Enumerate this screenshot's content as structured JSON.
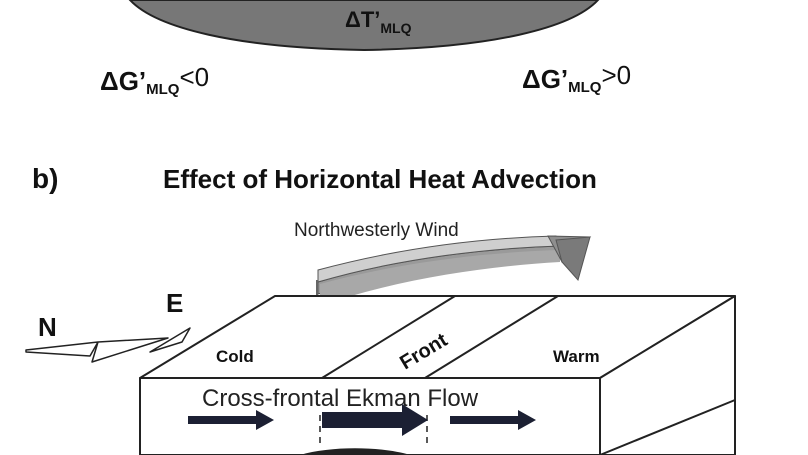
{
  "panel_a": {
    "delta_t_label": {
      "prefix": "ΔT’",
      "sub": "MLQ"
    },
    "left_label": {
      "prefix": "ΔG’",
      "sub": "MLQ",
      "sub2": "",
      "relation": "<0"
    },
    "right_label": {
      "prefix": "ΔG’",
      "sub": "MLQ",
      "sub2": "",
      "relation": ">0"
    }
  },
  "panel_b": {
    "letter": "b)",
    "title": "Effect of Horizontal Heat Advection",
    "wind_label": "Northwesterly Wind",
    "compass_n": "N",
    "compass_e": "E",
    "cold_label": "Cold",
    "front_label": "Front",
    "warm_label": "Warm",
    "flow_label": "Cross-frontal Ekman Flow"
  },
  "colors": {
    "dark_fill": "#777777",
    "arrow_fill": "#1c2033",
    "wind_arrow": "#b8b8b8",
    "line": "#222222"
  }
}
